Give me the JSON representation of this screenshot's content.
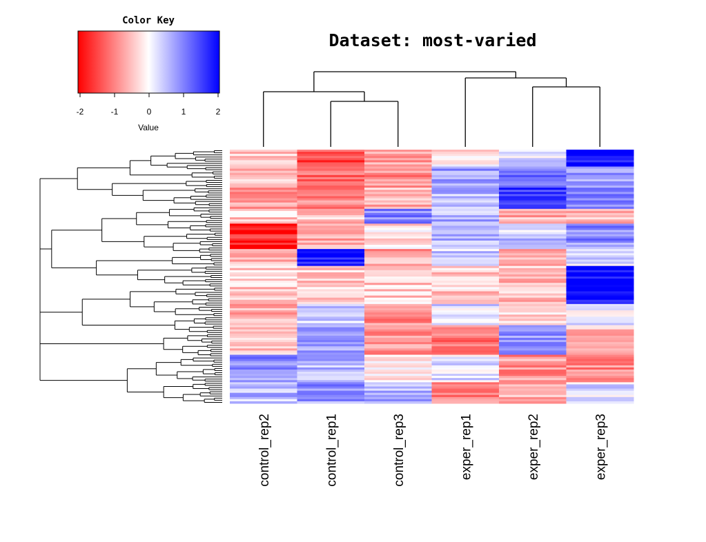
{
  "chart_data": {
    "type": "heatmap",
    "title": "Dataset: most-varied",
    "columns": [
      "control_rep2",
      "control_rep1",
      "control_rep3",
      "exper_rep1",
      "exper_rep2",
      "exper_rep3"
    ],
    "color_key": {
      "title": "Color Key",
      "xlabel": "Value",
      "range": [
        -2,
        2
      ],
      "ticks": [
        "-2",
        "-1",
        "0",
        "1",
        "2"
      ],
      "colors": {
        "low": "#ff0000",
        "mid": "#ffffff",
        "high": "#0000ff"
      }
    },
    "row_count": 120,
    "column_dendrogram": "((control_rep2,(control_rep1,control_rep3)),(exper_rep1,(exper_rep2,exper_rep3)))",
    "row_blocks": [
      {
        "rows": 8,
        "values": [
          -0.5,
          -1.4,
          -0.7,
          -0.2,
          0.3,
          1.9
        ]
      },
      {
        "rows": 10,
        "values": [
          -0.6,
          -1.1,
          -0.9,
          0.8,
          1.0,
          0.8
        ]
      },
      {
        "rows": 10,
        "values": [
          -0.7,
          -0.9,
          -0.6,
          0.5,
          1.6,
          0.9
        ]
      },
      {
        "rows": 7,
        "values": [
          -0.4,
          -0.5,
          0.9,
          0.6,
          -0.6,
          -0.5
        ]
      },
      {
        "rows": 12,
        "values": [
          -1.7,
          -0.6,
          -0.3,
          0.5,
          0.4,
          0.9
        ]
      },
      {
        "rows": 8,
        "values": [
          -0.5,
          1.9,
          -0.7,
          0.4,
          -0.5,
          0.3
        ]
      },
      {
        "rows": 18,
        "values": [
          -0.4,
          -0.4,
          -0.4,
          -0.4,
          -0.5,
          2.0
        ]
      },
      {
        "rows": 10,
        "values": [
          -0.6,
          0.3,
          -0.9,
          0.3,
          -0.4,
          0.2
        ]
      },
      {
        "rows": 14,
        "values": [
          -0.4,
          0.7,
          -0.9,
          -1.1,
          0.8,
          -0.5
        ]
      },
      {
        "rows": 13,
        "values": [
          0.9,
          0.6,
          -0.3,
          0.2,
          -0.8,
          -0.9
        ]
      },
      {
        "rows": 10,
        "values": [
          0.5,
          0.8,
          0.6,
          -1.0,
          -0.6,
          0.3
        ]
      }
    ]
  }
}
